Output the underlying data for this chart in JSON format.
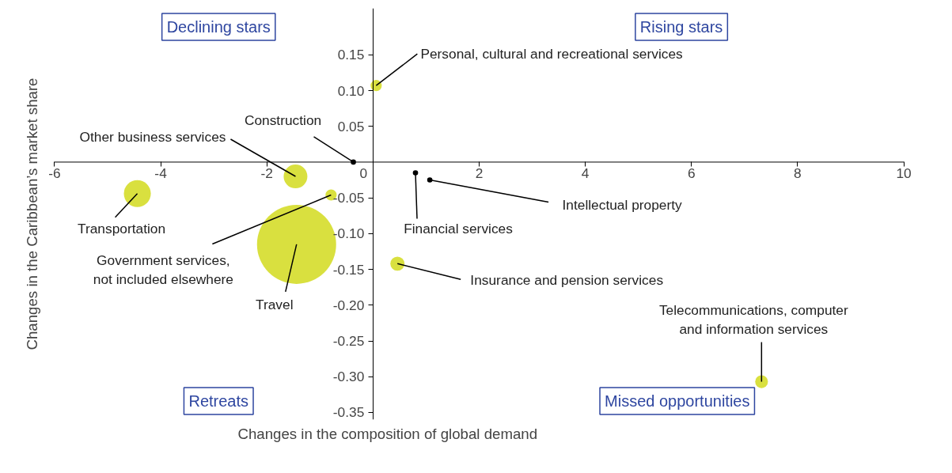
{
  "chart_data": {
    "type": "bubble",
    "xlabel": "Changes in the composition of global demand",
    "ylabel": "Changes in the Caribbean’s market share",
    "x": [
      0.06,
      -0.37,
      -1.46,
      -0.79,
      -4.44,
      -1.44,
      0.8,
      1.07,
      0.46,
      7.32
    ],
    "values": [
      0.107,
      0.0,
      -0.02,
      -0.046,
      -0.044,
      -0.115,
      -0.015,
      -0.025,
      -0.142,
      -0.307
    ],
    "sizes": [
      0.02,
      0.0044,
      0.09,
      0.02,
      0.116,
      1,
      0.0044,
      0.0044,
      0.032,
      0.026
    ],
    "colors": [
      "#d9e03f",
      "#000000",
      "#d9e03f",
      "#d9e03f",
      "#d9e03f",
      "#d9e03f",
      "#000000",
      "#000000",
      "#d9e03f",
      "#d9e03f"
    ],
    "marker": "circle",
    "grid": false,
    "xlim": [
      -6,
      10
    ],
    "ylim": [
      -0.36,
      0.215
    ],
    "xticks": [
      -6,
      -4,
      -2,
      0,
      2,
      4,
      6,
      8,
      10
    ],
    "yticks": [
      {
        "value": 0.15,
        "label": "0.15"
      },
      {
        "value": 0.1,
        "label": "0.10"
      },
      {
        "value": 0.05,
        "label": "0.05"
      },
      {
        "value": -0.05,
        "label": "-0.05"
      },
      {
        "value": -0.1,
        "label": "-0.10"
      },
      {
        "value": -0.15,
        "label": "-0.15"
      },
      {
        "value": -0.2,
        "label": "-0.20"
      },
      {
        "value": -0.25,
        "label": "-0.25"
      },
      {
        "value": -0.3,
        "label": "-0.30"
      },
      {
        "value": -0.35,
        "label": "-0.35"
      }
    ],
    "annotations": [
      "Declining stars",
      "Rising stars",
      "Retreats",
      "Missed opportunities",
      {
        "text": "Personal, cultural and recreational services",
        "x": 0.06,
        "y": 0.107
      },
      {
        "text": "Construction",
        "x": -0.37,
        "y": 0.0
      },
      {
        "text": "Other business services",
        "x": -1.46,
        "y": -0.02
      },
      {
        "text": "Government services,\nnot included elsewhere",
        "x": -0.79,
        "y": -0.046
      },
      {
        "text": "Transportation",
        "x": -4.44,
        "y": -0.044
      },
      {
        "text": "Travel",
        "x": -1.44,
        "y": -0.115
      },
      {
        "text": "Financial services",
        "x": 0.8,
        "y": -0.015
      },
      {
        "text": "Intellectual property",
        "x": 1.07,
        "y": -0.025
      },
      {
        "text": "Insurance and pension services",
        "x": 0.46,
        "y": -0.142
      },
      {
        "text": "Telecommunications, computer\nand information services",
        "x": 7.32,
        "y": -0.307
      }
    ]
  }
}
